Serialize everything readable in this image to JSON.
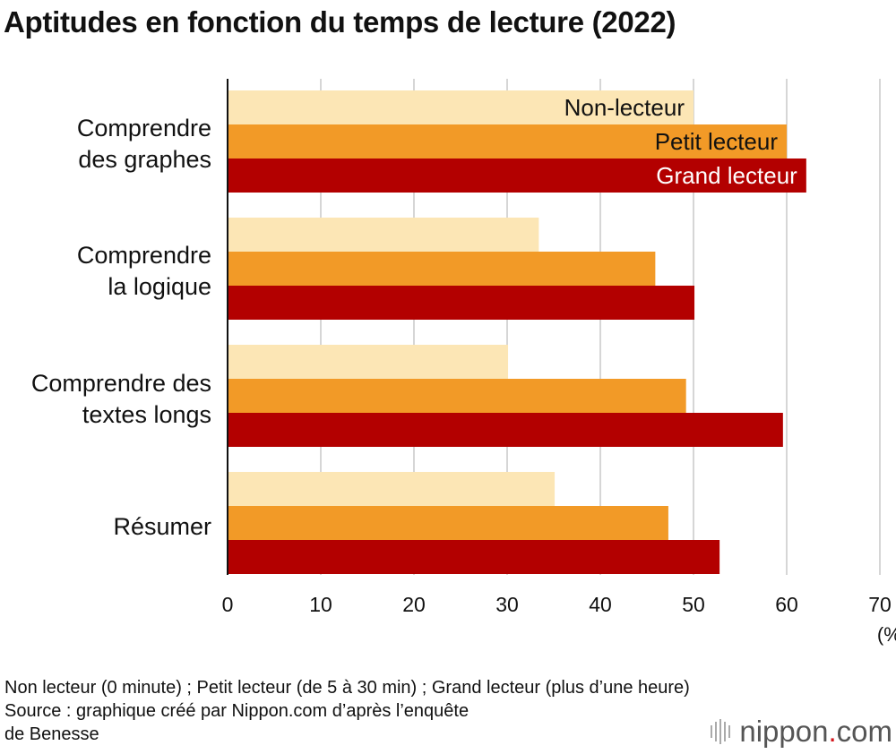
{
  "title": "Aptitudes en fonction du temps de lecture (2022)",
  "chart_data": {
    "type": "bar",
    "orientation": "horizontal",
    "categories": [
      "Comprendre des graphes",
      "Comprendre la logique",
      "Comprendre des textes longs",
      "Résumer"
    ],
    "category_labels": [
      "Comprendre\ndes graphes",
      "Comprendre\nla logique",
      "Comprendre des\ntextes longs",
      "Résumer"
    ],
    "series": [
      {
        "name": "Non-lecteur",
        "color": "#fce6b5",
        "label_color": "#111111",
        "values": [
          50.0,
          33.4,
          30.1,
          35.1
        ]
      },
      {
        "name": "Petit lecteur",
        "color": "#f29a27",
        "label_color": "#111111",
        "values": [
          60.0,
          45.9,
          49.2,
          47.3
        ]
      },
      {
        "name": "Grand lecteur",
        "color": "#b30000",
        "label_color": "#ffffff",
        "values": [
          62.1,
          50.1,
          59.6,
          52.8
        ]
      }
    ],
    "xlim": [
      0,
      70
    ],
    "xticks": [
      "0",
      "10",
      "20",
      "30",
      "40",
      "50",
      "60",
      "70"
    ],
    "x_unit": "(%)",
    "grid": true,
    "legend": "labels inside the first group's bars"
  },
  "footnotes": [
    "Non lecteur (0 minute) ; Petit lecteur (de 5 à 30 min) ; Grand lecteur (plus d’une heure)",
    "Source : graphique créé par Nippon.com d’après l’enquête",
    "de Benesse"
  ],
  "logo": {
    "name": "nippon",
    "dot": ".",
    "suffix": "com",
    "icon": "nippon-logo-bars-icon"
  }
}
